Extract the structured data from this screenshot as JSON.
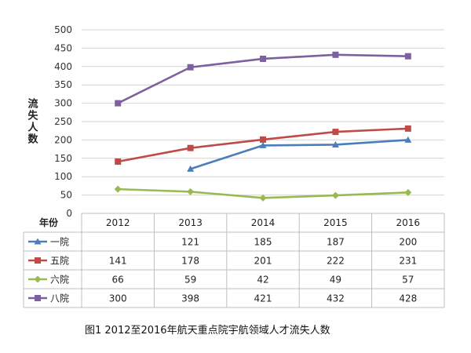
{
  "chart_data": {
    "type": "line",
    "ylabel": "流失人数",
    "table_header": "年份",
    "ylim": [
      0,
      500
    ],
    "yticks": [
      0,
      50,
      100,
      150,
      200,
      250,
      300,
      350,
      400,
      450,
      500
    ],
    "categories": [
      "2012",
      "2013",
      "2014",
      "2015",
      "2016"
    ],
    "grid": true,
    "legend": "data-table",
    "series": [
      {
        "name": "一院",
        "values": [
          null,
          121,
          185,
          187,
          200
        ],
        "color": "#4a7ebb",
        "marker": "triangle"
      },
      {
        "name": "五院",
        "values": [
          141,
          178,
          201,
          222,
          231
        ],
        "color": "#be4b48",
        "marker": "square"
      },
      {
        "name": "六院",
        "values": [
          66,
          59,
          42,
          49,
          57
        ],
        "color": "#98b954",
        "marker": "diamond"
      },
      {
        "name": "八院",
        "values": [
          300,
          398,
          421,
          432,
          428
        ],
        "color": "#7d60a0",
        "marker": "square"
      }
    ],
    "caption": "图1 2012至2016年航天重点院宇航领域人才流失人数"
  }
}
